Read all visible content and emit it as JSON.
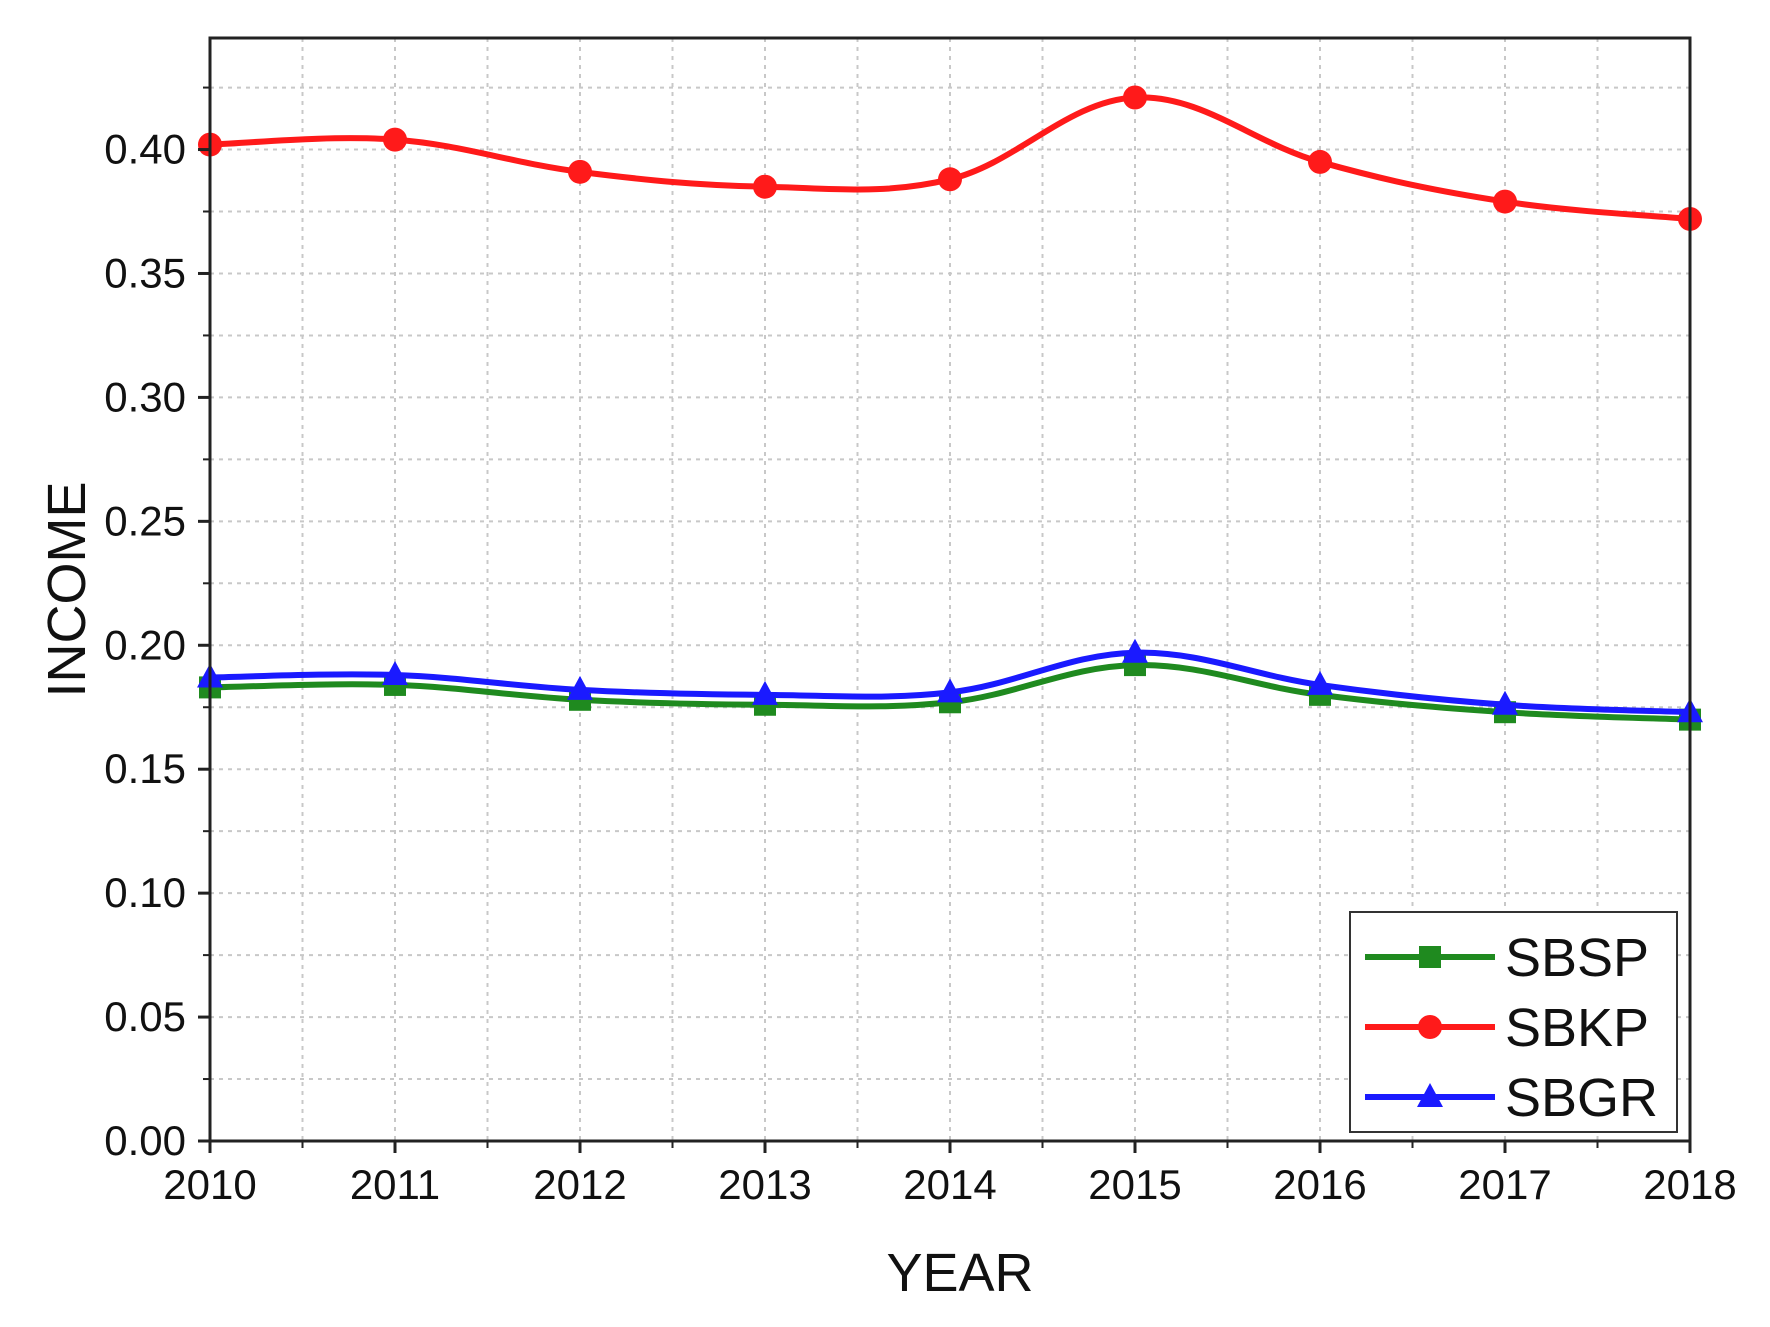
{
  "chart_data": {
    "type": "line",
    "title": "",
    "xlabel": "YEAR",
    "ylabel": "INCOME",
    "x": [
      2010,
      2011,
      2012,
      2013,
      2014,
      2015,
      2016,
      2017,
      2018
    ],
    "x_tick_labels": [
      "2010",
      "2011",
      "2012",
      "2013",
      "2014",
      "2015",
      "2016",
      "2017",
      "2018"
    ],
    "xlim": [
      2010,
      2018
    ],
    "ylim": [
      0.0,
      0.445
    ],
    "y_ticks": [
      0.0,
      0.05,
      0.1,
      0.15,
      0.2,
      0.25,
      0.3,
      0.35,
      0.4
    ],
    "y_tick_labels": [
      "0.00",
      "0.05",
      "0.10",
      "0.15",
      "0.20",
      "0.25",
      "0.30",
      "0.35",
      "0.40"
    ],
    "grid": true,
    "legend_position": "bottom-right",
    "series": [
      {
        "name": "SBSP",
        "color": "#1f8a1f",
        "marker": "square",
        "values": [
          0.183,
          0.184,
          0.178,
          0.176,
          0.177,
          0.192,
          0.18,
          0.173,
          0.17
        ]
      },
      {
        "name": "SBKP",
        "color": "#ff1a1a",
        "marker": "circle",
        "values": [
          0.402,
          0.404,
          0.391,
          0.385,
          0.388,
          0.421,
          0.395,
          0.379,
          0.372
        ]
      },
      {
        "name": "SBGR",
        "color": "#1a1aff",
        "marker": "triangle",
        "values": [
          0.187,
          0.188,
          0.182,
          0.18,
          0.181,
          0.197,
          0.184,
          0.176,
          0.173
        ]
      }
    ]
  }
}
